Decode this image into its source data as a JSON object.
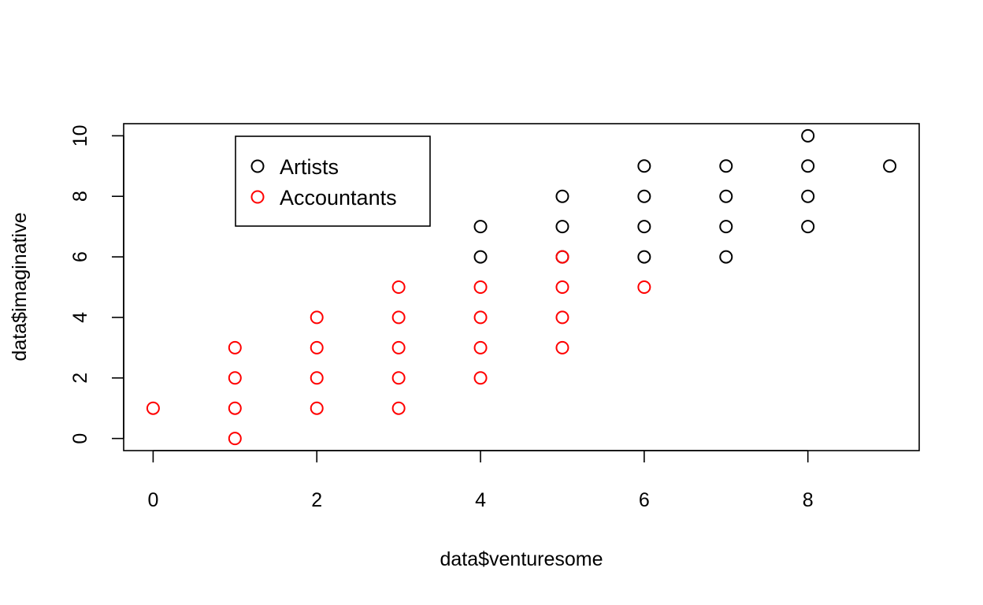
{
  "chart_data": {
    "type": "scatter",
    "title": "",
    "xlabel": "data$venturesome",
    "ylabel": "data$imaginative",
    "xlim": [
      -0.36,
      9.36
    ],
    "ylim": [
      -0.4,
      10.4
    ],
    "xticks": [
      0,
      2,
      4,
      6,
      8
    ],
    "yticks": [
      0,
      2,
      4,
      6,
      8,
      10
    ],
    "grid": false,
    "legend_position": "top-left",
    "series": [
      {
        "name": "Artists",
        "color": "#000000",
        "points": [
          [
            4,
            7
          ],
          [
            4,
            6
          ],
          [
            5,
            8
          ],
          [
            5,
            7
          ],
          [
            5,
            6
          ],
          [
            6,
            9
          ],
          [
            6,
            8
          ],
          [
            6,
            7
          ],
          [
            6,
            6
          ],
          [
            7,
            9
          ],
          [
            7,
            8
          ],
          [
            7,
            7
          ],
          [
            7,
            6
          ],
          [
            8,
            10
          ],
          [
            8,
            9
          ],
          [
            8,
            8
          ],
          [
            8,
            7
          ],
          [
            9,
            9
          ]
        ]
      },
      {
        "name": "Accountants",
        "color": "#ff0000",
        "points": [
          [
            0,
            1
          ],
          [
            1,
            3
          ],
          [
            1,
            2
          ],
          [
            1,
            1
          ],
          [
            1,
            0
          ],
          [
            2,
            4
          ],
          [
            2,
            3
          ],
          [
            2,
            2
          ],
          [
            2,
            1
          ],
          [
            3,
            5
          ],
          [
            3,
            4
          ],
          [
            3,
            3
          ],
          [
            3,
            2
          ],
          [
            3,
            1
          ],
          [
            4,
            5
          ],
          [
            4,
            4
          ],
          [
            4,
            3
          ],
          [
            4,
            2
          ],
          [
            5,
            6
          ],
          [
            5,
            5
          ],
          [
            5,
            4
          ],
          [
            5,
            3
          ],
          [
            6,
            5
          ]
        ]
      }
    ]
  }
}
